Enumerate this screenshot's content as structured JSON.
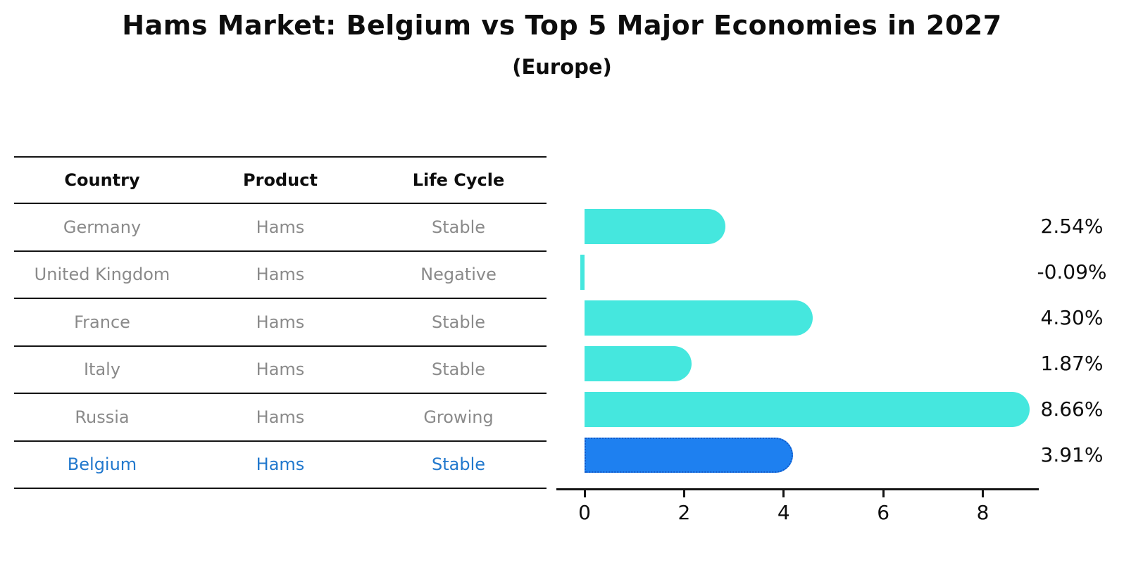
{
  "title": "Hams Market: Belgium vs Top 5 Major Economies in 2027",
  "subtitle": "(Europe)",
  "table": {
    "headers": [
      "Country",
      "Product",
      "Life Cycle"
    ],
    "rows": [
      {
        "country": "Germany",
        "product": "Hams",
        "life_cycle": "Stable",
        "highlighted": false
      },
      {
        "country": "United Kingdom",
        "product": "Hams",
        "life_cycle": "Negative",
        "highlighted": false
      },
      {
        "country": "France",
        "product": "Hams",
        "life_cycle": "Stable",
        "highlighted": false
      },
      {
        "country": "Italy",
        "product": "Hams",
        "life_cycle": "Stable",
        "highlighted": false
      },
      {
        "country": "Russia",
        "product": "Hams",
        "life_cycle": "Growing",
        "highlighted": false
      },
      {
        "country": "Belgium",
        "product": "Hams",
        "life_cycle": "Stable",
        "highlighted": true
      }
    ]
  },
  "chart_data": {
    "type": "bar",
    "orientation": "horizontal",
    "title": "Hams Market: Belgium vs Top 5 Major Economies in 2027 (Europe)",
    "categories": [
      "Germany",
      "United Kingdom",
      "France",
      "Italy",
      "Russia",
      "Belgium"
    ],
    "values": [
      2.54,
      -0.09,
      4.3,
      1.87,
      8.66,
      3.91
    ],
    "value_labels": [
      "2.54%",
      "-0.09%",
      "4.30%",
      "1.87%",
      "8.66%",
      "3.91%"
    ],
    "unit": "%",
    "xticks": [
      0,
      2,
      4,
      6,
      8
    ],
    "xlim": [
      -0.6,
      9.1
    ],
    "grid": false,
    "legend": false,
    "bar_color": "#45e7de",
    "highlight_color": "#1e80f0",
    "highlight_border_color": "#1159c9",
    "highlight_index": 5
  },
  "colors": {
    "background": "#ffffff",
    "table_line": "#141414",
    "table_text": "#8a8a8a",
    "header_text": "#0d0d0d",
    "highlight_text": "#2178cd",
    "axis": "#141414"
  }
}
